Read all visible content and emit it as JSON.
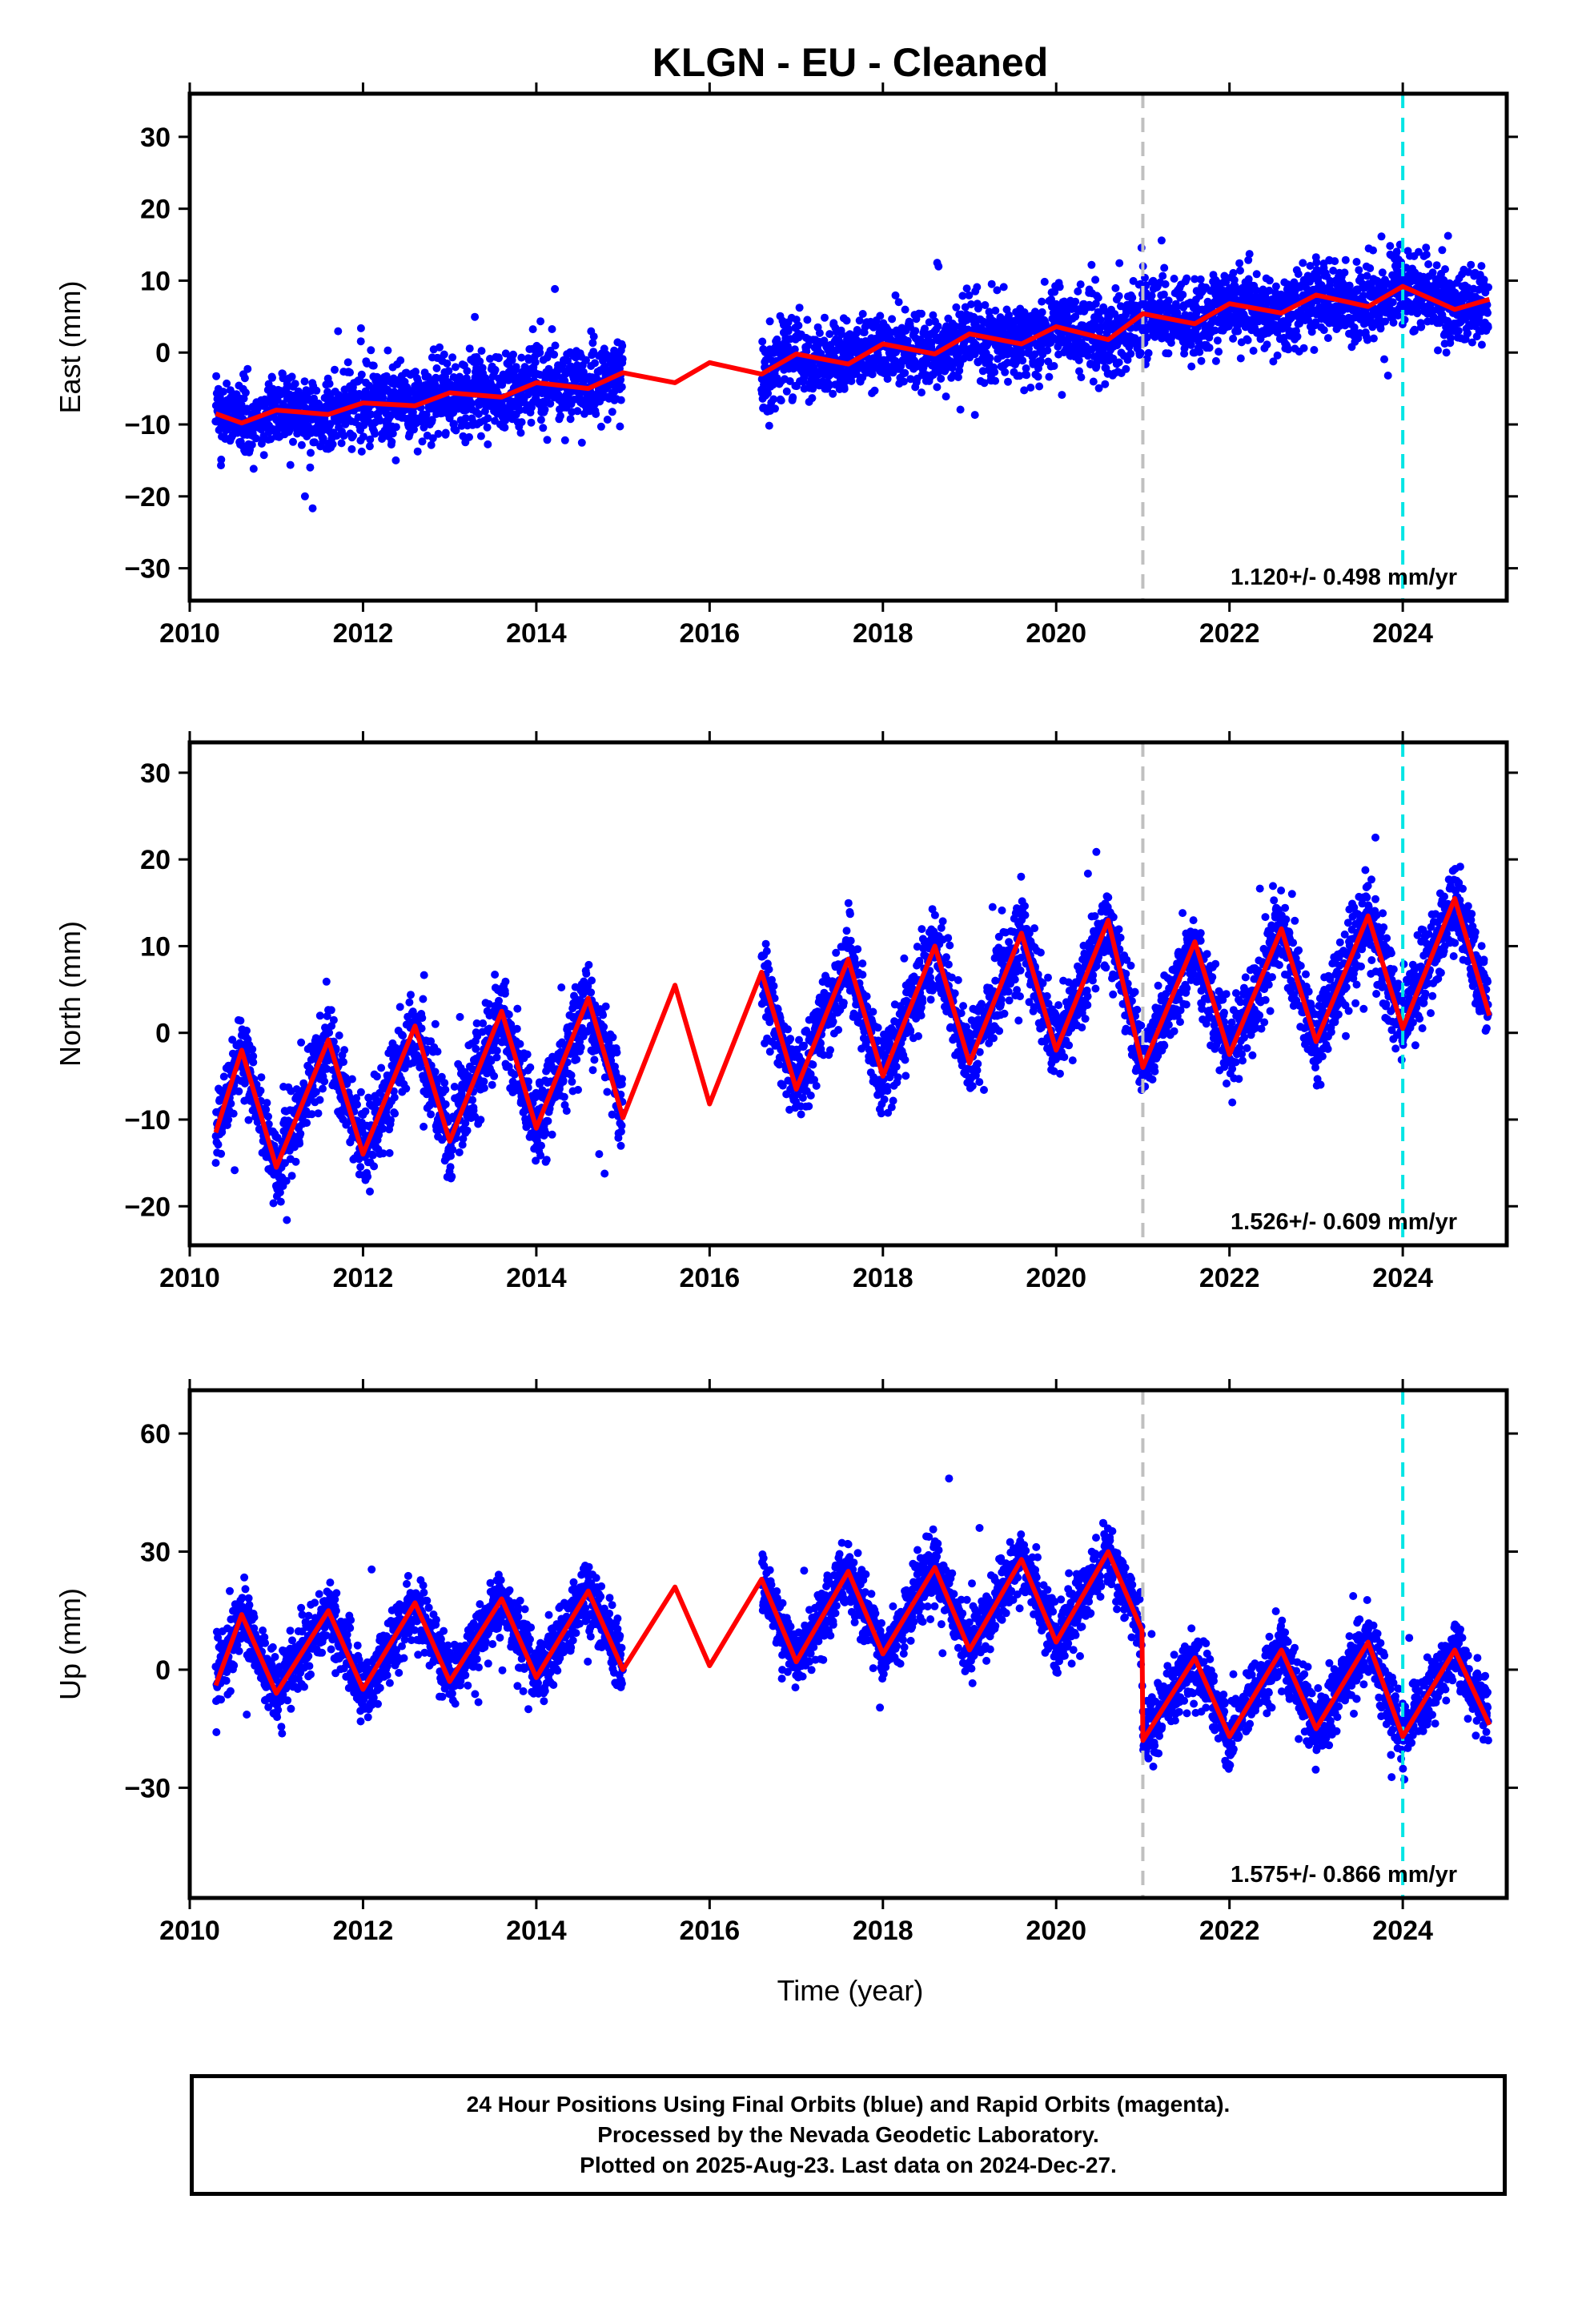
{
  "title": "KLGN  - EU - Cleaned",
  "colors": {
    "data_points": "#0000ff",
    "model_line": "#ff0000",
    "equipment_change_line": "#c0c0c0",
    "event_line": "#00e5e5",
    "frame": "#000000"
  },
  "xlabel": "Time (year)",
  "x_ticks": [
    2010,
    2012,
    2014,
    2016,
    2018,
    2020,
    2022,
    2024
  ],
  "xlim": [
    2010,
    2025.2
  ],
  "vertical_markers": [
    {
      "year": 2021.0,
      "style": "dashed",
      "color": "gray"
    },
    {
      "year": 2024.0,
      "style": "dashed",
      "color": "cyan"
    }
  ],
  "chart_data": [
    {
      "type": "scatter",
      "panel": "east",
      "ylabel": "East (mm)",
      "ylim": [
        -34.5,
        36
      ],
      "y_ticks": [
        -30,
        -20,
        -10,
        0,
        10,
        20,
        30
      ],
      "rate_label": "1.120+/- 0.498 mm/yr",
      "series": [
        {
          "kind": "points",
          "color": "blue",
          "segments": [
            [
              2010.3,
              2015.0
            ],
            [
              2016.6,
              2024.99
            ]
          ]
        },
        {
          "kind": "line",
          "color": "red",
          "x": [
            2010.3,
            2010.6,
            2011.0,
            2011.6,
            2012.0,
            2012.6,
            2013.0,
            2013.6,
            2014.0,
            2014.6,
            2015.0,
            2015.6,
            2016.0,
            2016.6,
            2017.0,
            2017.6,
            2018.0,
            2018.6,
            2019.0,
            2019.6,
            2020.0,
            2020.6,
            2021.0,
            2021.6,
            2022.0,
            2022.6,
            2023.0,
            2023.6,
            2024.0,
            2024.6,
            2025.0
          ],
          "y": [
            -8.5,
            -9.8,
            -8.0,
            -8.6,
            -7.0,
            -7.4,
            -5.6,
            -6.2,
            -4.2,
            -5.0,
            -2.8,
            -4.2,
            -1.4,
            -3.0,
            -0.2,
            -1.6,
            1.2,
            -0.2,
            2.6,
            1.2,
            3.6,
            1.8,
            5.4,
            4.0,
            6.8,
            5.5,
            8.0,
            6.4,
            9.2,
            6.0,
            7.4
          ]
        }
      ]
    },
    {
      "type": "scatter",
      "panel": "north",
      "ylabel": "North (mm)",
      "ylim": [
        -24.5,
        33.5
      ],
      "y_ticks": [
        -20,
        -10,
        0,
        10,
        20,
        30
      ],
      "rate_label": "1.526+/- 0.609 mm/yr",
      "series": [
        {
          "kind": "points",
          "color": "blue",
          "segments": [
            [
              2010.3,
              2015.0
            ],
            [
              2016.6,
              2024.99
            ]
          ]
        },
        {
          "kind": "line",
          "color": "red",
          "x": [
            2010.3,
            2010.6,
            2011.0,
            2011.6,
            2012.0,
            2012.6,
            2013.0,
            2013.6,
            2014.0,
            2014.6,
            2015.0,
            2015.6,
            2016.0,
            2016.6,
            2017.0,
            2017.6,
            2018.0,
            2018.6,
            2019.0,
            2019.6,
            2020.0,
            2020.6,
            2021.0,
            2021.6,
            2022.0,
            2022.6,
            2023.0,
            2023.6,
            2024.0,
            2024.6,
            2025.0
          ],
          "y": [
            -11.5,
            -2.0,
            -15.5,
            -0.8,
            -14.0,
            0.8,
            -12.5,
            2.5,
            -11.0,
            4.0,
            -9.8,
            5.5,
            -8.2,
            7.0,
            -6.5,
            8.5,
            -5.0,
            10.0,
            -3.5,
            11.5,
            -2.0,
            13.0,
            -4.0,
            10.5,
            -2.5,
            12.0,
            -1.0,
            13.5,
            0.5,
            15.5,
            2.0
          ]
        }
      ]
    },
    {
      "type": "scatter",
      "panel": "up",
      "ylabel": "Up (mm)",
      "ylim": [
        -58,
        71
      ],
      "y_ticks": [
        -30,
        0,
        30,
        60
      ],
      "rate_label": "1.575+/- 0.866 mm/yr",
      "series": [
        {
          "kind": "points",
          "color": "blue",
          "segments": [
            [
              2010.3,
              2015.0
            ],
            [
              2016.6,
              2024.99
            ]
          ]
        },
        {
          "kind": "line",
          "color": "red",
          "x": [
            2010.3,
            2010.6,
            2011.0,
            2011.6,
            2012.0,
            2012.6,
            2013.0,
            2013.6,
            2014.0,
            2014.6,
            2015.0,
            2015.6,
            2016.0,
            2016.6,
            2017.0,
            2017.6,
            2018.0,
            2018.6,
            2019.0,
            2019.6,
            2020.0,
            2020.6,
            2020.99,
            2021.0,
            2021.6,
            2022.0,
            2022.6,
            2023.0,
            2023.6,
            2024.0,
            2024.6,
            2025.0
          ],
          "y": [
            -4,
            14,
            -6,
            15,
            -5,
            17,
            -3,
            18,
            -2,
            20,
            0,
            21,
            1,
            23,
            2,
            25,
            4,
            26,
            5,
            28,
            7,
            30,
            10,
            -18,
            3,
            -17,
            5,
            -15,
            7,
            -17,
            5,
            -14
          ]
        }
      ]
    }
  ],
  "footer": {
    "line1": "24 Hour Positions Using Final Orbits (blue) and Rapid Orbits (magenta).",
    "line2": "Processed by the Nevada Geodetic Laboratory.",
    "line3": "Plotted on 2025-Aug-23. Last data on 2024-Dec-27."
  }
}
